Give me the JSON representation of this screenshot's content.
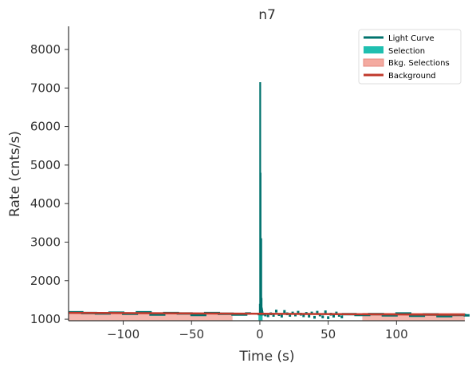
{
  "chart_data": {
    "type": "line",
    "title": "n7",
    "xlabel": "Time (s)",
    "ylabel": "Rate (cnts/s)",
    "xlim": [
      -140,
      150
    ],
    "ylim": [
      960,
      8600
    ],
    "x_ticks": [
      -100,
      -50,
      0,
      50,
      100
    ],
    "x_tick_labels": [
      "−100",
      "−50",
      "0",
      "50",
      "100"
    ],
    "y_ticks": [
      1000,
      2000,
      3000,
      4000,
      5000,
      6000,
      7000,
      8000
    ],
    "y_tick_labels": [
      "1000",
      "2000",
      "3000",
      "4000",
      "5000",
      "6000",
      "7000",
      "8000"
    ],
    "grid": false,
    "legend_position": "top-right",
    "legend": {
      "light_curve": "Light Curve",
      "selection": "Selection",
      "bkg_selections": "Bkg. Selections",
      "background": "Background"
    },
    "colors": {
      "light_curve": "#00736e",
      "selection": "#1fbfb0",
      "bkg_selections": "#f4aaa0",
      "background": "#c0392b"
    },
    "background_level": {
      "x": [
        -140,
        150
      ],
      "y": [
        1165,
        1115
      ]
    },
    "background_selections": [
      [
        -140,
        -20
      ],
      [
        75,
        150
      ]
    ],
    "selection": [
      -1,
      2
    ],
    "light_curve_coarse": {
      "x": [
        -140,
        -130,
        -120,
        -110,
        -100,
        -90,
        -80,
        -70,
        -60,
        -50,
        -40,
        -30,
        -20,
        -10
      ],
      "y": [
        1180,
        1160,
        1150,
        1170,
        1140,
        1180,
        1120,
        1160,
        1150,
        1110,
        1160,
        1140,
        1120,
        1150
      ]
    },
    "light_curve_peak": {
      "x": [
        -1,
        0,
        0.25,
        0.5,
        0.75,
        1,
        1.25,
        1.5,
        1.75,
        2,
        2.5,
        3
      ],
      "y": [
        1150,
        1400,
        7150,
        4800,
        2650,
        3100,
        1550,
        1300,
        1250,
        1200,
        1150,
        1120
      ]
    },
    "light_curve_fine": {
      "x": [
        4,
        6,
        8,
        10,
        12,
        14,
        16,
        18,
        20,
        22,
        24,
        26,
        28,
        30,
        32,
        34,
        36,
        38,
        40,
        42,
        44,
        46,
        48,
        50,
        52,
        54,
        56,
        58,
        60
      ],
      "y": [
        1110,
        1090,
        1140,
        1100,
        1210,
        1120,
        1080,
        1200,
        1140,
        1100,
        1160,
        1110,
        1180,
        1130,
        1090,
        1150,
        1080,
        1160,
        1050,
        1180,
        1110,
        1060,
        1190,
        1040,
        1130,
        1080,
        1160,
        1100,
        1060
      ]
    },
    "light_curve_tail": {
      "x": [
        60,
        70,
        80,
        90,
        100,
        110,
        120,
        130,
        140,
        150
      ],
      "y": [
        1130,
        1110,
        1130,
        1100,
        1150,
        1090,
        1120,
        1080,
        1110,
        1100
      ]
    }
  }
}
